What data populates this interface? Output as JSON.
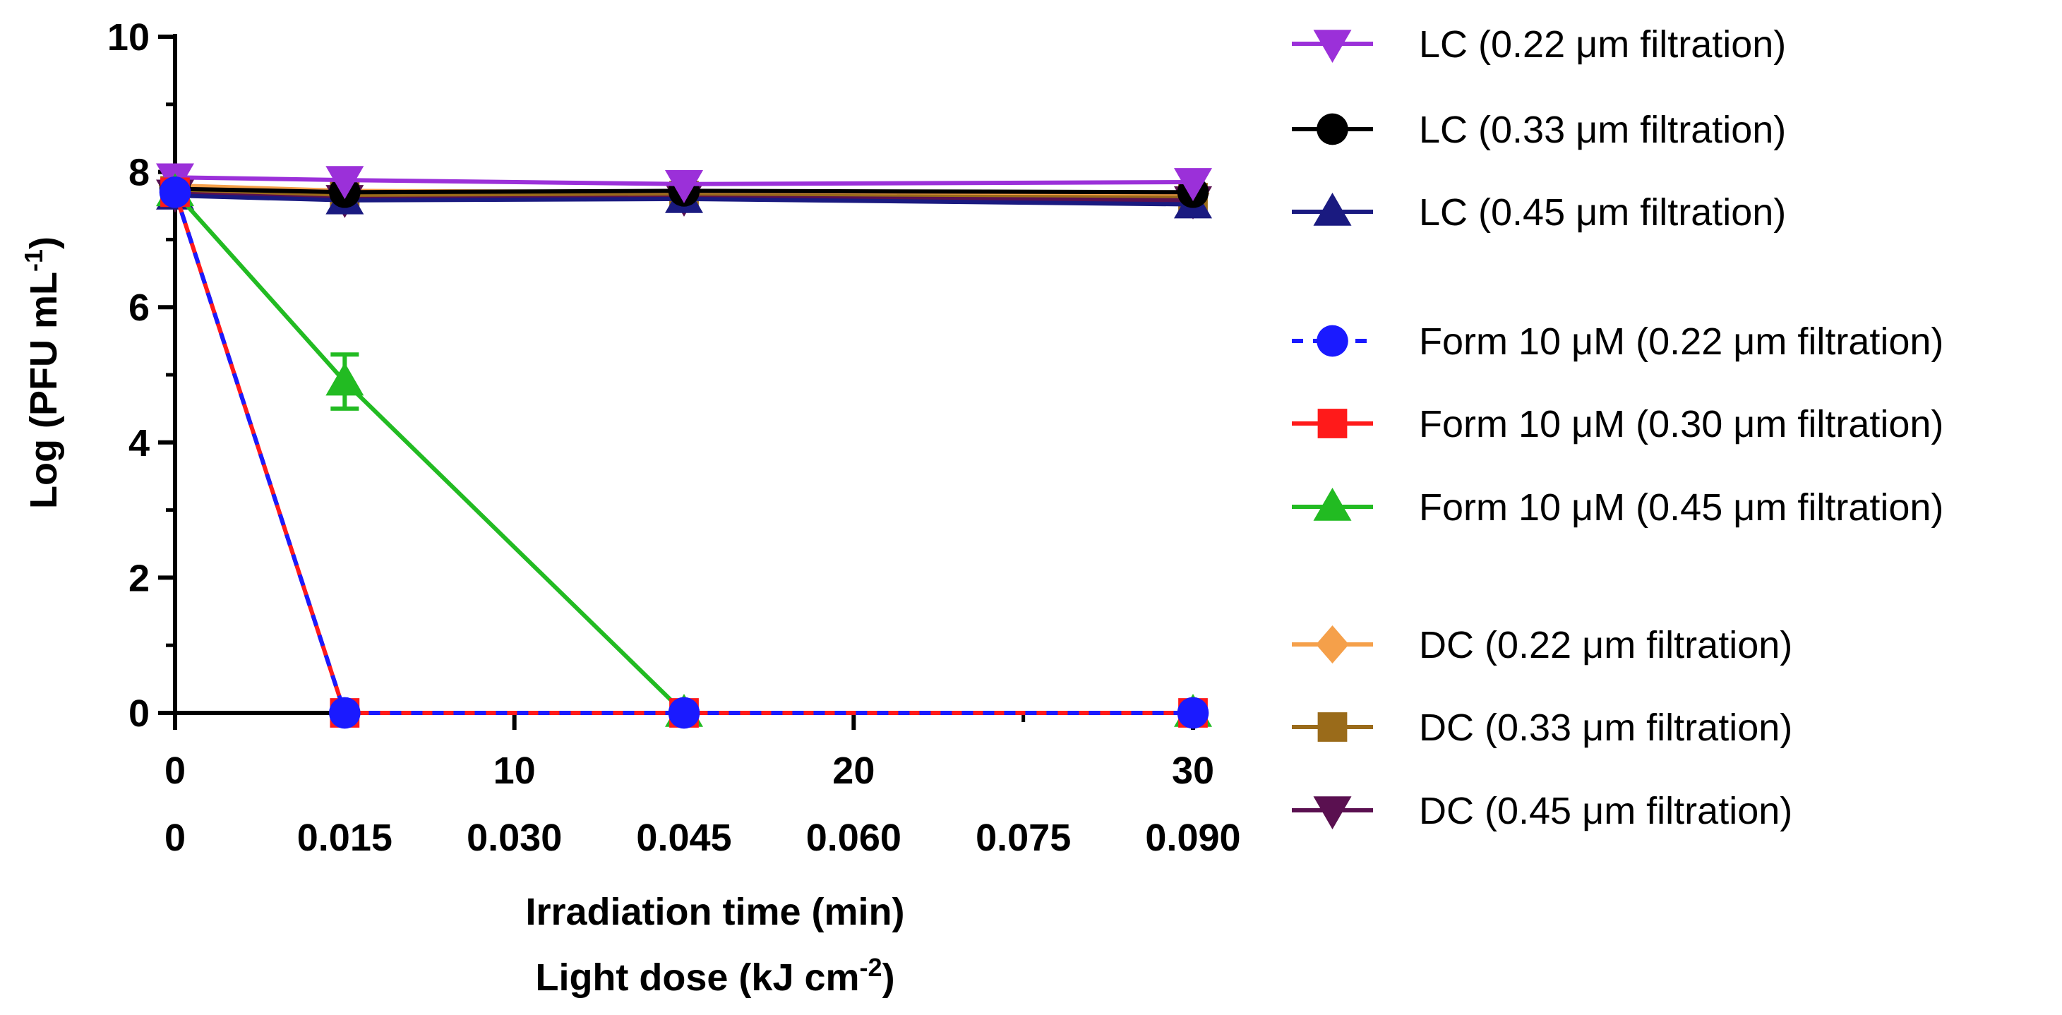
{
  "chart_data": {
    "type": "line",
    "ylabel": "Log (PFU mL",
    "ylabel_sup": "-1",
    "ylabel_end": ")",
    "ylim": [
      0,
      10
    ],
    "yticks": [
      "0",
      "2",
      "4",
      "6",
      "8",
      "10"
    ],
    "xlim": [
      0,
      30
    ],
    "xticks_time": [
      "0",
      "10",
      "20",
      "30"
    ],
    "xticks_dose": [
      "0",
      "0.015",
      "0.030",
      "0.045",
      "0.060",
      "0.075",
      "0.090"
    ],
    "xlabel": "Irradiation time (min)",
    "xlabel2": "Light dose (kJ cm",
    "xlabel2_sup": "-2",
    "xlabel2_end": ")",
    "x": [
      0,
      5,
      15,
      30
    ],
    "series": [
      {
        "name": "LC (0.22 μm filtration)",
        "color": "#9b30d9",
        "marker": "triangle-down",
        "dash": false,
        "values": [
          7.92,
          7.88,
          7.82,
          7.85
        ]
      },
      {
        "name": "LC (0.33 μm filtration)",
        "color": "#000000",
        "marker": "circle",
        "dash": false,
        "values": [
          7.75,
          7.7,
          7.72,
          7.7
        ]
      },
      {
        "name": "LC (0.45 μm filtration)",
        "color": "#1a1a80",
        "marker": "triangle-up",
        "dash": false,
        "values": [
          7.65,
          7.58,
          7.6,
          7.52
        ]
      },
      {
        "name": "Form 10 μM (0.22 μm filtration)",
        "color": "#1a1aff",
        "marker": "circle",
        "dash": true,
        "values": [
          7.7,
          0,
          0,
          0
        ]
      },
      {
        "name": "Form 10 μM (0.30 μm filtration)",
        "color": "#ff1a1a",
        "marker": "square",
        "dash": false,
        "values": [
          7.7,
          0,
          0,
          0
        ]
      },
      {
        "name": "Form 10 μM (0.45 μm filtration)",
        "color": "#22bb22",
        "marker": "triangle-up",
        "dash": false,
        "values": [
          7.7,
          4.9,
          0,
          0
        ],
        "error": [
          0,
          0.4,
          0,
          0
        ]
      },
      {
        "name": "DC (0.22 μm filtration)",
        "color": "#f5a04a",
        "marker": "diamond",
        "dash": false,
        "values": [
          7.8,
          7.72,
          7.7,
          7.68
        ]
      },
      {
        "name": "DC (0.33 μm filtration)",
        "color": "#9a6b1a",
        "marker": "square",
        "dash": false,
        "values": [
          7.72,
          7.65,
          7.65,
          7.62
        ]
      },
      {
        "name": "DC (0.45 μm filtration)",
        "color": "#5a1050",
        "marker": "triangle-down",
        "dash": false,
        "values": [
          7.68,
          7.6,
          7.62,
          7.58
        ]
      }
    ],
    "draw_order": [
      6,
      7,
      8,
      2,
      1,
      0,
      5,
      4,
      3
    ],
    "legend_groups": [
      [
        0,
        1,
        2
      ],
      [
        3,
        4,
        5
      ],
      [
        6,
        7,
        8
      ]
    ],
    "legend_position": "right"
  }
}
